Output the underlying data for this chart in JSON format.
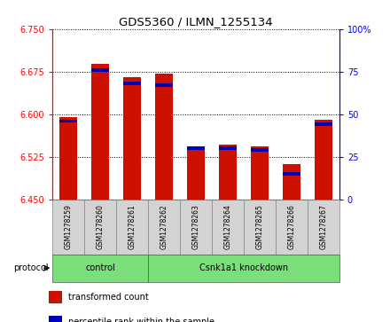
{
  "title": "GDS5360 / ILMN_1255134",
  "samples": [
    "GSM1278259",
    "GSM1278260",
    "GSM1278261",
    "GSM1278262",
    "GSM1278263",
    "GSM1278264",
    "GSM1278265",
    "GSM1278266",
    "GSM1278267"
  ],
  "transformed_count": [
    6.595,
    6.688,
    6.665,
    6.672,
    6.543,
    6.547,
    6.543,
    6.513,
    6.59
  ],
  "percentile_rank": [
    46,
    76,
    68,
    67,
    30,
    30,
    29,
    15,
    44
  ],
  "ylim_left": [
    6.45,
    6.75
  ],
  "ylim_right": [
    0,
    100
  ],
  "yticks_left": [
    6.45,
    6.525,
    6.6,
    6.675,
    6.75
  ],
  "yticks_right": [
    0,
    25,
    50,
    75,
    100
  ],
  "bar_color_red": "#cc1100",
  "bar_color_blue": "#0000bb",
  "protocol_groups": [
    {
      "label": "control",
      "start": 0,
      "end": 2
    },
    {
      "label": "Csnk1a1 knockdown",
      "start": 3,
      "end": 8
    }
  ],
  "legend_items": [
    {
      "color": "#cc1100",
      "label": "transformed count"
    },
    {
      "color": "#0000bb",
      "label": "percentile rank within the sample"
    }
  ],
  "baseline": 6.45,
  "protocol_bar_color": "#7adf7a",
  "sample_box_color": "#d3d3d3",
  "sample_box_edge": "#888888"
}
